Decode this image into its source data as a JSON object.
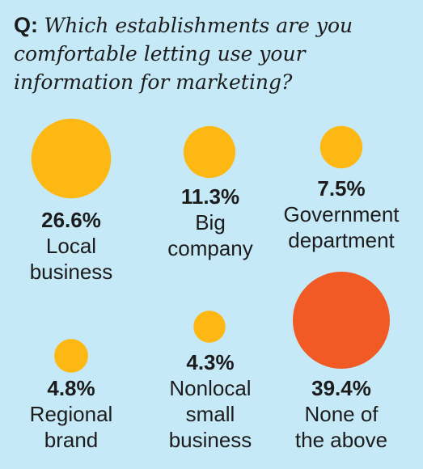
{
  "question": {
    "prefix": "Q:",
    "text": "Which establishments are you comfortable letting use your information for marketing?"
  },
  "colors": {
    "background": "#c6e9f7",
    "bubble": "#fdb814",
    "highlight": "#f15a24"
  },
  "chart_data": {
    "type": "bubble",
    "items": [
      {
        "label": "Local\nbusiness",
        "percent_text": "26.6%",
        "value": 26.6,
        "color": "#fdb814"
      },
      {
        "label": "Big\ncompany",
        "percent_text": "11.3%",
        "value": 11.3,
        "color": "#fdb814"
      },
      {
        "label": "Government\ndepartment",
        "percent_text": "7.5%",
        "value": 7.5,
        "color": "#fdb814"
      },
      {
        "label": "Regional\nbrand",
        "percent_text": "4.8%",
        "value": 4.8,
        "color": "#fdb814"
      },
      {
        "label": "Nonlocal\nsmall\nbusiness",
        "percent_text": "4.3%",
        "value": 4.3,
        "color": "#fdb814"
      },
      {
        "label": "None of\nthe above",
        "percent_text": "39.4%",
        "value": 39.4,
        "color": "#f15a24"
      }
    ]
  }
}
